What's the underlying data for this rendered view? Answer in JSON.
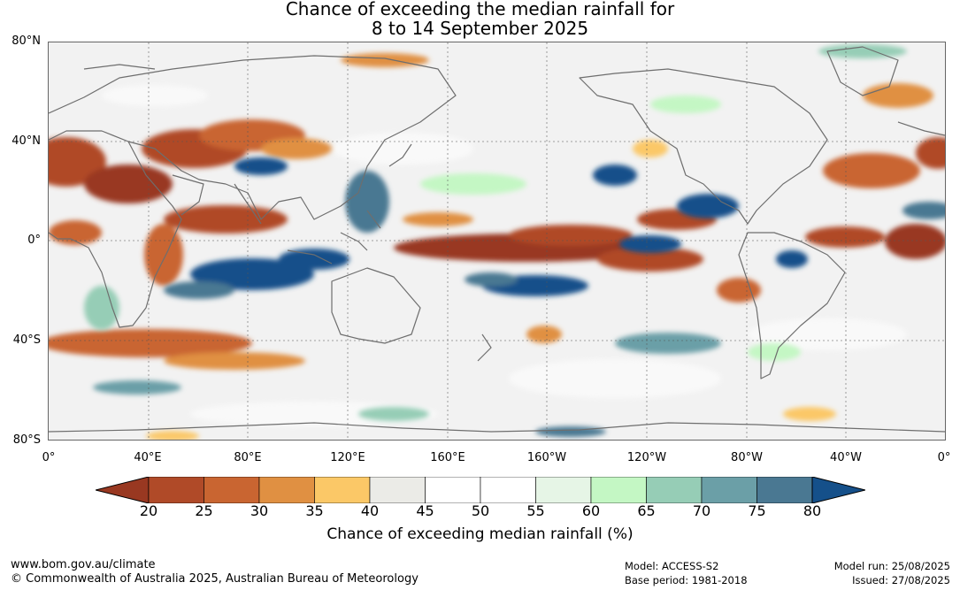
{
  "title_line1": "Chance of exceeding the median rainfall for",
  "title_line2": "8 to 14 September 2025",
  "map": {
    "lat_labels": [
      "80°N",
      "40°N",
      "0°",
      "40°S",
      "80°S"
    ],
    "lon_labels": [
      "0°",
      "40°E",
      "80°E",
      "120°E",
      "160°E",
      "160°W",
      "120°W",
      "80°W",
      "40°W",
      "0°"
    ],
    "land_color": "#f2f2f2",
    "coast_color": "#6e6e6e",
    "grid": true
  },
  "colorbar": {
    "ticks": [
      "20",
      "25",
      "30",
      "35",
      "40",
      "45",
      "50",
      "55",
      "60",
      "65",
      "70",
      "75",
      "80"
    ],
    "colors": [
      "#993821",
      "#b04a28",
      "#c96531",
      "#e09042",
      "#fbc867",
      "#ebebe7",
      "#ffffff",
      "#ffffff",
      "#e6f5e6",
      "#c4f7c4",
      "#96cdb6",
      "#6b9fa7",
      "#4a7892",
      "#15508a"
    ],
    "label": "Chance of exceeding median rainfall (%)"
  },
  "footer": {
    "website": "www.bom.gov.au/climate",
    "copyright": "© Commonwealth of Australia 2025, Australian Bureau of Meteorology",
    "model": "Model: ACCESS-S2",
    "base_period": "Base period: 1981-2018",
    "model_run": "Model run: 25/08/2025",
    "issued": "Issued: 27/08/2025"
  }
}
